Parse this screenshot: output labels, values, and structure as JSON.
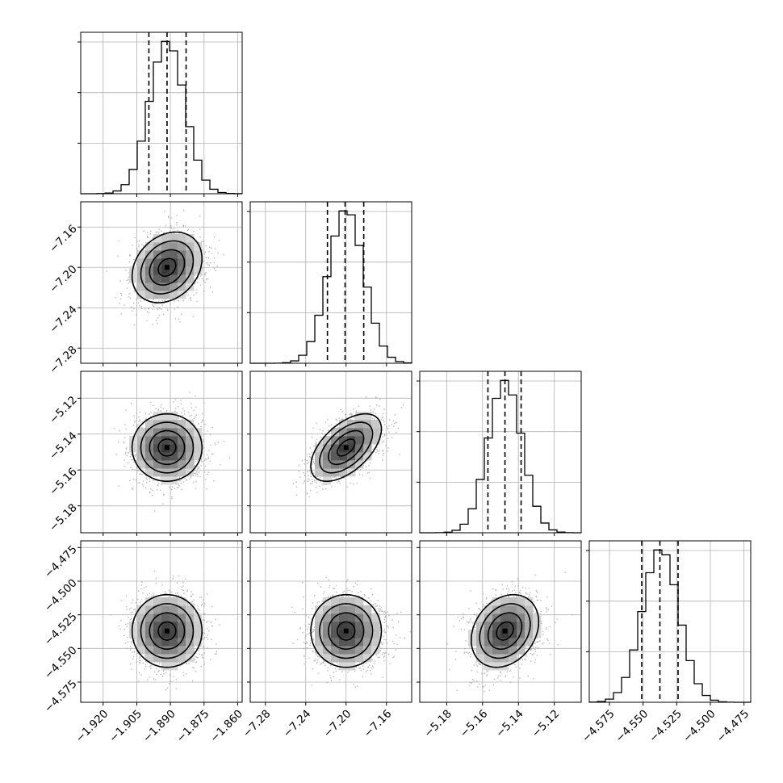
{
  "chart_data": {
    "type": "corner",
    "parameters": [
      {
        "range": [
          -1.93,
          -1.858
        ],
        "mean": -1.8915,
        "std": 0.0078,
        "quantiles": [
          -1.8996,
          -1.8915,
          -1.883
        ],
        "ticks": [
          -1.92,
          -1.905,
          -1.89,
          -1.875,
          -1.86
        ],
        "tick_labels": [
          "−1.920",
          "−1.905",
          "−1.890",
          "−1.875",
          "−1.860"
        ]
      },
      {
        "range": [
          -7.295,
          -7.135
        ],
        "mean": -7.2,
        "std": 0.0175,
        "quantiles": [
          -7.2185,
          -7.201,
          -7.1825
        ],
        "ticks": [
          -7.28,
          -7.24,
          -7.2,
          -7.16
        ],
        "tick_labels": [
          "−7.28",
          "−7.24",
          "−7.20",
          "−7.16"
        ]
      },
      {
        "range": [
          -5.195,
          -5.105
        ],
        "mean": -5.1475,
        "std": 0.0094,
        "quantiles": [
          -5.157,
          -5.1475,
          -5.1385
        ],
        "ticks": [
          -5.18,
          -5.16,
          -5.14,
          -5.12
        ],
        "tick_labels": [
          "−5.18",
          "−5.16",
          "−5.14",
          "−5.12"
        ]
      },
      {
        "range": [
          -4.59,
          -4.47
        ],
        "mean": -4.537,
        "std": 0.0135,
        "quantiles": [
          -4.551,
          -4.5375,
          -4.524
        ],
        "ticks": [
          -4.575,
          -4.55,
          -4.525,
          -4.5,
          -4.475
        ],
        "tick_labels": [
          "−4.575",
          "−4.550",
          "−4.525",
          "−4.500",
          "−4.475"
        ]
      }
    ],
    "correlations": {
      "1-0": 0.25,
      "2-0": 0.0,
      "2-1": 0.55,
      "3-0": 0.0,
      "3-1": 0.0,
      "3-2": 0.25
    },
    "histogram_bins": 20,
    "contour_levels_sigma": [
      0.5,
      1.0,
      1.5,
      2.0
    ],
    "grid": true,
    "colors": {
      "ink": "#000000",
      "grid": "#b0b0b0",
      "points": "#9a9a9a",
      "background": "#ffffff"
    }
  }
}
